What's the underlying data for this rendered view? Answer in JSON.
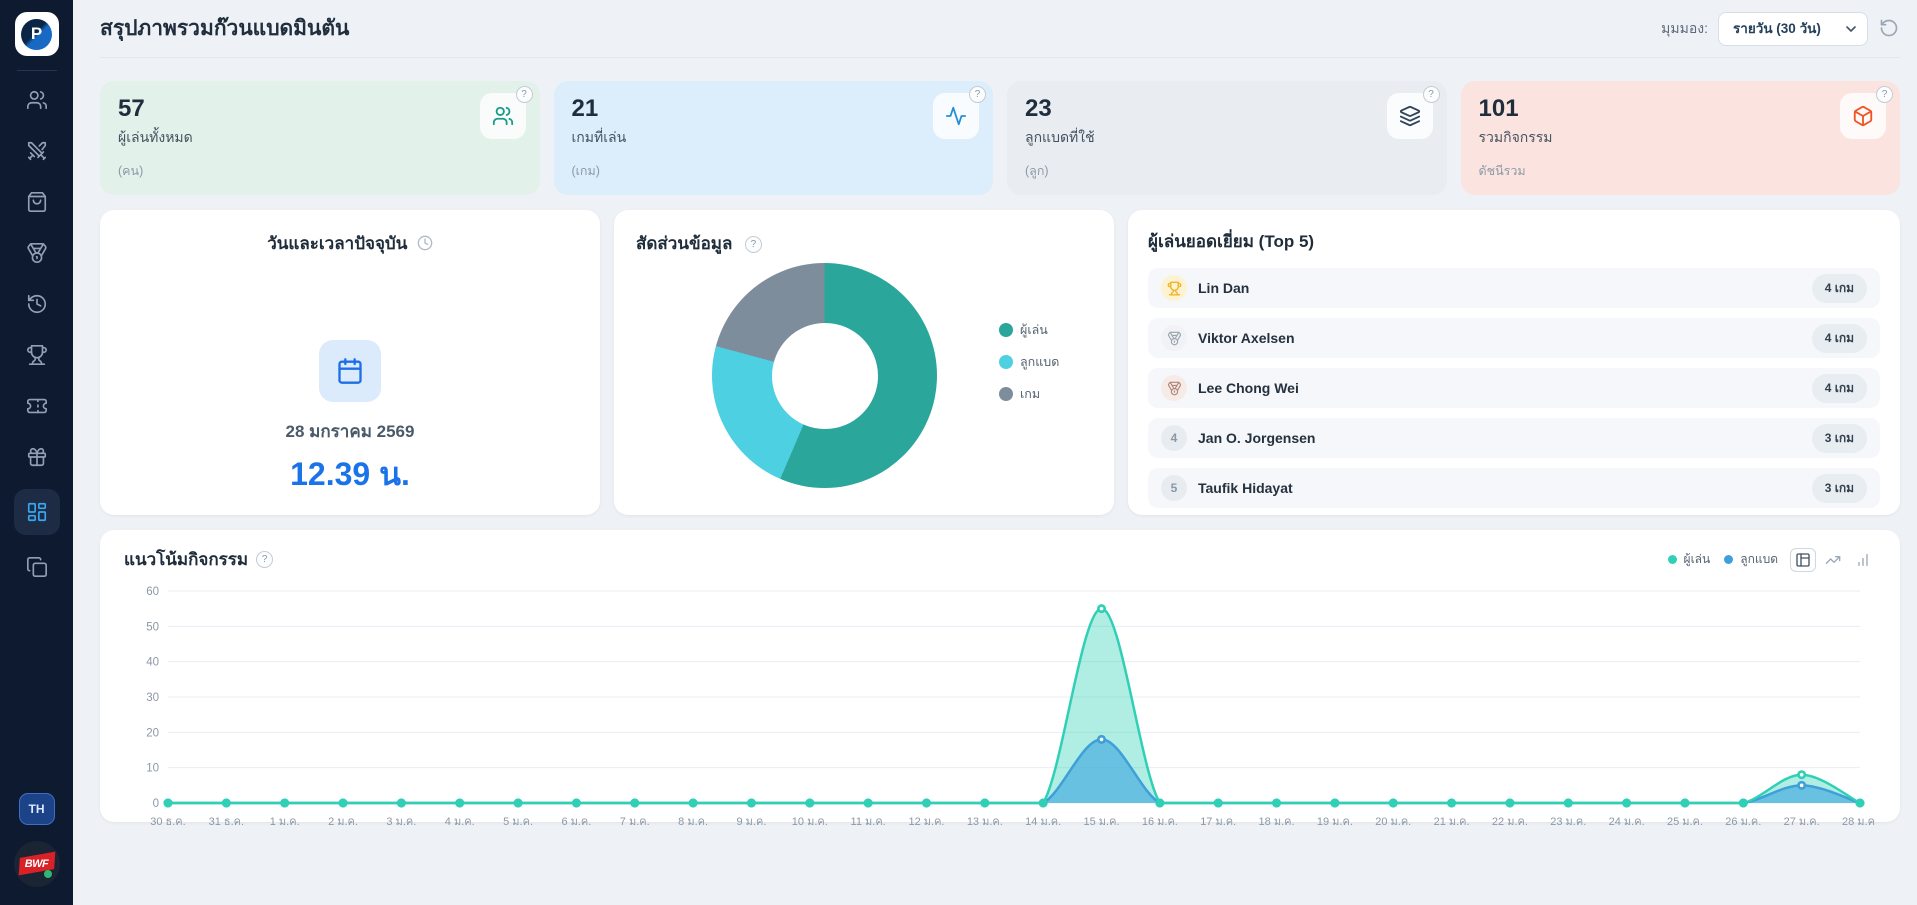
{
  "app": {
    "logo_letter": "P",
    "lang_button": "TH",
    "bwf_label": "BWF"
  },
  "header": {
    "title": "สรุปภาพรวมก๊วนแบดมินตัน",
    "view_label": "มุมมอง:",
    "view_value": "รายวัน (30 วัน)"
  },
  "sidebar": {
    "items": [
      {
        "name": "players",
        "icon": "users-icon",
        "active": false
      },
      {
        "name": "matches",
        "icon": "swords-icon",
        "active": false
      },
      {
        "name": "shop",
        "icon": "shopping-bag-icon",
        "active": false
      },
      {
        "name": "medals",
        "icon": "medal-icon",
        "active": false
      },
      {
        "name": "history",
        "icon": "history-icon",
        "active": false
      },
      {
        "name": "tournaments",
        "icon": "trophy-icon",
        "active": false
      },
      {
        "name": "tickets",
        "icon": "ticket-icon",
        "active": false
      },
      {
        "name": "rewards",
        "icon": "gift-icon",
        "active": false
      },
      {
        "name": "dashboard",
        "icon": "dashboard-icon",
        "active": true
      },
      {
        "name": "reports",
        "icon": "copy-icon",
        "active": false
      }
    ]
  },
  "stats": [
    {
      "value": "57",
      "label": "ผู้เล่นทั้งหมด",
      "unit": "(คน)",
      "icon": "users-icon",
      "bg": "#e2f1ea",
      "icon_color": "#199b8a",
      "help": "?"
    },
    {
      "value": "21",
      "label": "เกมที่เล่น",
      "unit": "(เกม)",
      "icon": "activity-icon",
      "bg": "#dcedfb",
      "icon_color": "#2590d8",
      "help": "?"
    },
    {
      "value": "23",
      "label": "ลูกแบดที่ใช้",
      "unit": "(ลูก)",
      "icon": "layers-icon",
      "bg": "#e9edf2",
      "icon_color": "#31445a",
      "help": "?"
    },
    {
      "value": "101",
      "label": "รวมกิจกรรม",
      "unit": "ดัชนีรวม",
      "icon": "package-icon",
      "bg": "#fbe4e0",
      "icon_color": "#f05423",
      "help": "?"
    }
  ],
  "datetime_card": {
    "title": "วันและเวลาปัจจุบัน",
    "date": "28 มกราคม 2569",
    "time": "12.39 น."
  },
  "top_players": {
    "title": "ผู้เล่นยอดเยี่ยม (Top 5)",
    "rows": [
      {
        "rank": 1,
        "name": "Lin Dan",
        "games": "4 เกม"
      },
      {
        "rank": 2,
        "name": "Viktor Axelsen",
        "games": "4 เกม"
      },
      {
        "rank": 3,
        "name": "Lee Chong Wei",
        "games": "4 เกม"
      },
      {
        "rank": 4,
        "name": "Jan O. Jorgensen",
        "games": "3 เกม"
      },
      {
        "rank": 5,
        "name": "Taufik Hidayat",
        "games": "3 เกม"
      }
    ]
  },
  "chart_data": [
    {
      "type": "pie",
      "donut": true,
      "title": "สัดส่วนข้อมูล",
      "labels": [
        "ผู้เล่น",
        "ลูกแบด",
        "เกม"
      ],
      "values": [
        57,
        23,
        21
      ],
      "colors": [
        "#2aa79a",
        "#4dd0e1",
        "#7d8d9c"
      ],
      "legend_position": "right"
    },
    {
      "type": "area",
      "title": "แนวโน้มกิจกรรม",
      "categories": [
        "30 ธ.ค.",
        "31 ธ.ค.",
        "1 ม.ค.",
        "2 ม.ค.",
        "3 ม.ค.",
        "4 ม.ค.",
        "5 ม.ค.",
        "6 ม.ค.",
        "7 ม.ค.",
        "8 ม.ค.",
        "9 ม.ค.",
        "10 ม.ค.",
        "11 ม.ค.",
        "12 ม.ค.",
        "13 ม.ค.",
        "14 ม.ค.",
        "15 ม.ค.",
        "16 ม.ค.",
        "17 ม.ค.",
        "18 ม.ค.",
        "19 ม.ค.",
        "20 ม.ค.",
        "21 ม.ค.",
        "22 ม.ค.",
        "23 ม.ค.",
        "24 ม.ค.",
        "25 ม.ค.",
        "26 ม.ค.",
        "27 ม.ค.",
        "28 ม.ค."
      ],
      "series": [
        {
          "name": "ผู้เล่น",
          "color": "#2fd0b5",
          "fill": "rgba(47,208,181,0.38)",
          "values": [
            0,
            0,
            0,
            0,
            0,
            0,
            0,
            0,
            0,
            0,
            0,
            0,
            0,
            0,
            0,
            0,
            55,
            0,
            0,
            0,
            0,
            0,
            0,
            0,
            0,
            0,
            0,
            0,
            8,
            0
          ]
        },
        {
          "name": "ลูกแบด",
          "color": "#3f9fd8",
          "fill": "rgba(70,172,222,0.68)",
          "values": [
            0,
            0,
            0,
            0,
            0,
            0,
            0,
            0,
            0,
            0,
            0,
            0,
            0,
            0,
            0,
            0,
            18,
            0,
            0,
            0,
            0,
            0,
            0,
            0,
            0,
            0,
            0,
            0,
            5,
            0
          ]
        }
      ],
      "ylim": [
        0,
        60
      ],
      "yticks": [
        0,
        10,
        20,
        30,
        40,
        50,
        60
      ],
      "grid": true,
      "legend_position": "top-right",
      "toggles": [
        "table",
        "trend",
        "bars"
      ],
      "active_toggle": 0
    }
  ]
}
